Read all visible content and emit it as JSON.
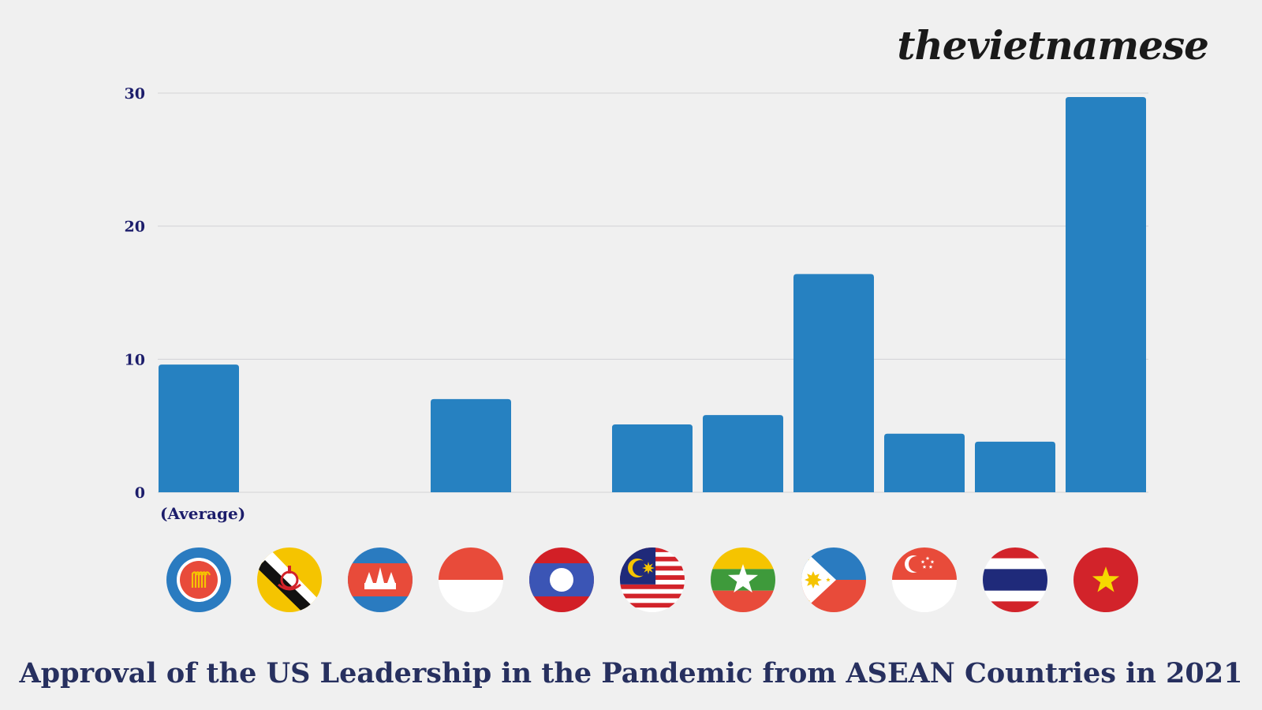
{
  "brand": {
    "logo_text": "thevietnamese"
  },
  "chart_data": {
    "type": "bar",
    "title": "Approval of the US Leadership in the Pandemic from ASEAN Countries in 2021",
    "xlabel": "",
    "ylabel": "",
    "categories": [
      "(Average)",
      "",
      "",
      "",
      "",
      "",
      "",
      "",
      "",
      "",
      ""
    ],
    "category_flags": [
      "asean",
      "brunei",
      "cambodia",
      "indonesia",
      "laos",
      "malaysia",
      "myanmar",
      "philippines",
      "singapore",
      "thailand",
      "vietnam"
    ],
    "values": [
      9.6,
      0,
      0,
      7.0,
      0,
      5.1,
      5.8,
      16.4,
      4.4,
      3.8,
      29.7
    ],
    "ylim": [
      0,
      30
    ],
    "yticks": [
      0,
      10,
      20,
      30
    ],
    "grid": true,
    "legend": "none",
    "bar_color": "#2681c1"
  }
}
